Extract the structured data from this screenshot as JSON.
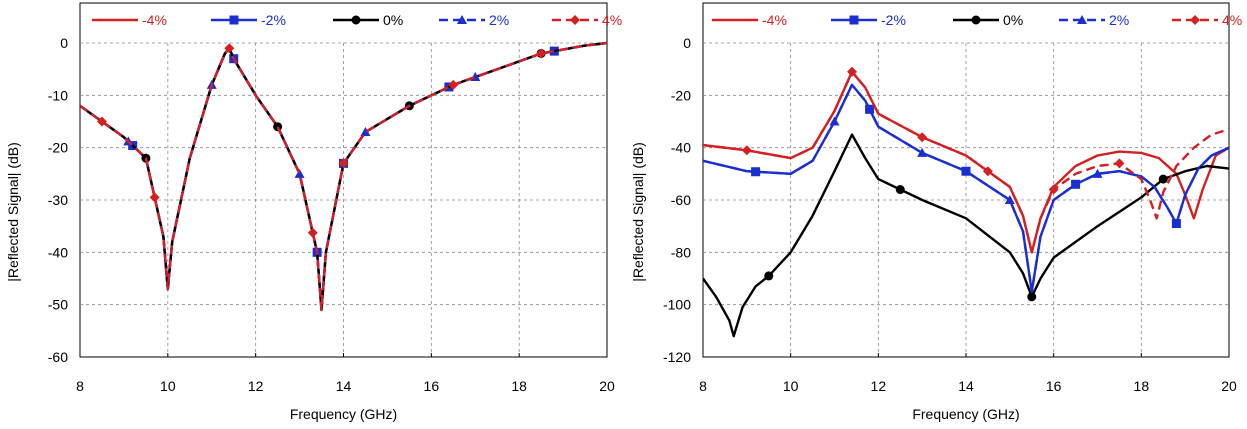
{
  "chart_data": [
    {
      "type": "line",
      "xlabel": "Frequency (GHz)",
      "ylabel": "|Reflected Signal| (dB)",
      "xlim": [
        8,
        20
      ],
      "ylim": [
        -60,
        0
      ],
      "xticks": [
        "8",
        "10",
        "12",
        "14",
        "16",
        "18",
        "20"
      ],
      "yticks": [
        "0",
        "-10",
        "-20",
        "-30",
        "-40",
        "-50",
        "-60"
      ],
      "grid": true,
      "legend_position": "top",
      "series": [
        {
          "name": "-4%",
          "color": "#d42020",
          "dash": "solid",
          "marker": "none",
          "x": [
            8,
            9,
            9.5,
            9.9,
            10,
            10.1,
            10.5,
            11,
            11.3,
            11.4,
            11.5,
            12,
            12.5,
            13,
            13.4,
            13.5,
            13.6,
            14,
            14.5,
            15.5,
            16.5,
            17.5,
            18.5,
            19.5,
            20
          ],
          "y": [
            -12,
            -18,
            -22,
            -37,
            -47,
            -38,
            -22,
            -8,
            -2,
            -1,
            -3,
            -10,
            -16,
            -25,
            -40,
            -51,
            -40,
            -23,
            -17,
            -12,
            -8,
            -5,
            -2,
            -0.5,
            0
          ]
        },
        {
          "name": "-2%",
          "color": "#1a2fd0",
          "dash": "solid",
          "marker": "square",
          "x": [
            8,
            9,
            9.5,
            9.9,
            10,
            10.1,
            10.5,
            11,
            11.3,
            11.4,
            11.5,
            12,
            12.5,
            13,
            13.4,
            13.5,
            13.6,
            14,
            14.5,
            15.5,
            16.5,
            17.5,
            18.5,
            19.5,
            20
          ],
          "y": [
            -12,
            -18,
            -22,
            -37,
            -47,
            -38,
            -22,
            -8,
            -2,
            -1,
            -3,
            -10,
            -16,
            -25,
            -40,
            -51,
            -40,
            -23,
            -17,
            -12,
            -8,
            -5,
            -2,
            -0.5,
            0
          ],
          "marker_x": [
            9.2,
            11.5,
            13.4,
            14,
            16.4,
            18.8
          ]
        },
        {
          "name": "0%",
          "color": "#000000",
          "dash": "solid",
          "marker": "circle",
          "x": [
            8,
            9,
            9.5,
            9.9,
            10,
            10.1,
            10.5,
            11,
            11.3,
            11.4,
            11.5,
            12,
            12.5,
            13,
            13.4,
            13.5,
            13.6,
            14,
            14.5,
            15.5,
            16.5,
            17.5,
            18.5,
            19.5,
            20
          ],
          "y": [
            -12,
            -18,
            -22,
            -37,
            -47,
            -38,
            -22,
            -8,
            -2,
            -1,
            -3,
            -10,
            -16,
            -25,
            -40,
            -51,
            -40,
            -23,
            -17,
            -12,
            -8,
            -5,
            -2,
            -0.5,
            0
          ],
          "marker_x": [
            9.5,
            12.5,
            15.5,
            18.5
          ]
        },
        {
          "name": "2%",
          "color": "#1a2fd0",
          "dash": "dashed",
          "marker": "triangle",
          "x": [
            8,
            9,
            9.5,
            9.9,
            10,
            10.1,
            10.5,
            11,
            11.3,
            11.4,
            11.5,
            12,
            12.5,
            13,
            13.4,
            13.5,
            13.6,
            14,
            14.5,
            15.5,
            16.5,
            17.5,
            18.5,
            19.5,
            20
          ],
          "y": [
            -12,
            -18,
            -22,
            -37,
            -47,
            -38,
            -22,
            -8,
            -2,
            -1,
            -3,
            -10,
            -16,
            -25,
            -40,
            -51,
            -40,
            -23,
            -17,
            -12,
            -8,
            -5,
            -2,
            -0.5,
            0
          ],
          "marker_x": [
            9.1,
            11,
            13,
            14.5,
            17
          ]
        },
        {
          "name": "4%",
          "color": "#d42020",
          "dash": "dashed",
          "marker": "diamond",
          "x": [
            8,
            9,
            9.5,
            9.9,
            10,
            10.1,
            10.5,
            11,
            11.3,
            11.4,
            11.5,
            12,
            12.5,
            13,
            13.4,
            13.5,
            13.6,
            14,
            14.5,
            15.5,
            16.5,
            17.5,
            18.5,
            19.5,
            20
          ],
          "y": [
            -12,
            -18,
            -22,
            -37,
            -47,
            -38,
            -22,
            -8,
            -2,
            -1,
            -3,
            -10,
            -16,
            -25,
            -40,
            -51,
            -40,
            -23,
            -17,
            -12,
            -8,
            -5,
            -2,
            -0.5,
            0
          ],
          "marker_x": [
            8.5,
            9.7,
            11.4,
            13.3,
            14,
            16.5,
            18.5
          ]
        }
      ]
    },
    {
      "type": "line",
      "xlabel": "Frequency (GHz)",
      "ylabel": "|Reflected Signal| (dB)",
      "xlim": [
        8,
        20
      ],
      "ylim": [
        -120,
        0
      ],
      "xticks": [
        "8",
        "10",
        "12",
        "14",
        "16",
        "18",
        "20"
      ],
      "yticks": [
        "0",
        "-20",
        "-40",
        "-60",
        "-80",
        "-100",
        "-120"
      ],
      "grid": true,
      "legend_position": "top",
      "series": [
        {
          "name": "-4%",
          "color": "#d42020",
          "dash": "solid",
          "marker": "none",
          "x": [
            8,
            9,
            10,
            10.5,
            11,
            11.4,
            11.7,
            12,
            13,
            14,
            15,
            15.3,
            15.5,
            15.7,
            16,
            16.5,
            17,
            17.5,
            18,
            18.4,
            18.8,
            19,
            19.2,
            19.4,
            19.7,
            20
          ],
          "y": [
            -39,
            -41,
            -44,
            -40,
            -26,
            -11,
            -17,
            -27,
            -36,
            -43,
            -55,
            -66,
            -80,
            -67,
            -55,
            -47,
            -43,
            -41.5,
            -42,
            -44,
            -50,
            -58,
            -67,
            -56,
            -43,
            -40
          ]
        },
        {
          "name": "-2%",
          "color": "#1a2fd0",
          "dash": "solid",
          "marker": "square",
          "x": [
            8,
            9,
            10,
            10.5,
            11,
            11.4,
            11.7,
            12,
            13,
            14,
            15,
            15.3,
            15.5,
            15.7,
            16,
            16.5,
            17,
            17.5,
            18,
            18.3,
            18.6,
            18.8,
            19,
            19.3,
            19.6,
            20
          ],
          "y": [
            -45,
            -49,
            -50,
            -45,
            -30,
            -16,
            -22,
            -32,
            -42,
            -49,
            -60,
            -72,
            -95,
            -74,
            -60,
            -54,
            -50,
            -49,
            -51,
            -55,
            -63,
            -69,
            -58,
            -48,
            -43,
            -40
          ],
          "marker_x": [
            9.2,
            11.8,
            14,
            16.5,
            18.8
          ]
        },
        {
          "name": "0%",
          "color": "#000000",
          "dash": "solid",
          "marker": "circle",
          "x": [
            8,
            8.3,
            8.6,
            8.7,
            8.9,
            9.2,
            9.5,
            10,
            10.5,
            11,
            11.4,
            11.7,
            12,
            12.5,
            13,
            14,
            15,
            15.3,
            15.5,
            15.7,
            16,
            17,
            18,
            18.5,
            19,
            19.5,
            20
          ],
          "y": [
            -90,
            -97,
            -106,
            -112,
            -101,
            -93,
            -89,
            -80,
            -66,
            -49,
            -35,
            -44,
            -52,
            -56,
            -60,
            -67,
            -80,
            -88,
            -97,
            -90,
            -82,
            -70,
            -59,
            -52,
            -49,
            -47,
            -48
          ],
          "marker_x": [
            9.5,
            12.5,
            15.5,
            18.5
          ]
        },
        {
          "name": "2%",
          "color": "#1a2fd0",
          "dash": "dashed",
          "marker": "triangle",
          "x": [
            8,
            9,
            10,
            10.5,
            11,
            11.4,
            11.7,
            12,
            13,
            14,
            15,
            15.3,
            15.5,
            15.7,
            16,
            16.5,
            17,
            17.5,
            18,
            18.3,
            18.6,
            18.8,
            19,
            19.3,
            19.6,
            20
          ],
          "y": [
            -45,
            -49,
            -50,
            -45,
            -30,
            -16,
            -22,
            -32,
            -42,
            -49,
            -60,
            -72,
            -95,
            -74,
            -60,
            -54,
            -50,
            -49,
            -51,
            -55,
            -63,
            -69,
            -58,
            -48,
            -43,
            -40
          ],
          "marker_x": [
            11,
            13,
            15,
            17
          ]
        },
        {
          "name": "4%",
          "color": "#d42020",
          "dash": "dashed",
          "marker": "diamond",
          "x": [
            8,
            9,
            10,
            10.5,
            11,
            11.4,
            11.7,
            12,
            13,
            14,
            15,
            15.3,
            15.5,
            15.7,
            16,
            16.5,
            17,
            17.5,
            18,
            18.2,
            18.35,
            18.5,
            18.8,
            19.2,
            19.6,
            20
          ],
          "y": [
            -39,
            -41,
            -44,
            -40,
            -26,
            -11,
            -17,
            -27,
            -36,
            -43,
            -55,
            -66,
            -80,
            -67,
            -56,
            -50,
            -47,
            -46,
            -52,
            -60,
            -67,
            -57,
            -47,
            -40,
            -35,
            -33
          ],
          "marker_x": [
            9,
            11.4,
            13,
            14.5,
            16,
            17.5
          ]
        }
      ]
    }
  ]
}
